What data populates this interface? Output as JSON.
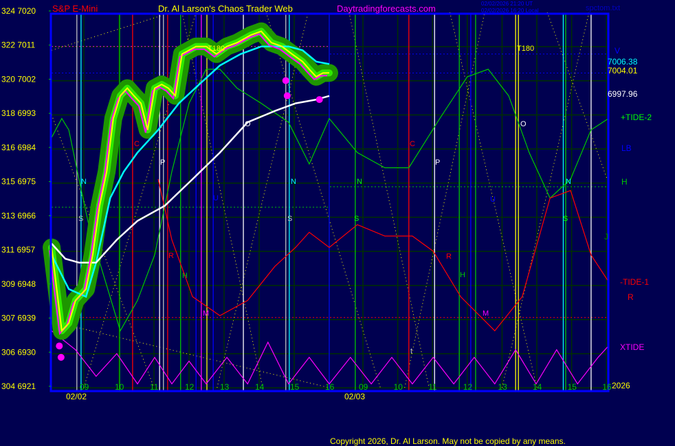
{
  "header": {
    "instrument": "S&P E-Mini",
    "site_title": "Dr. Al Larson's Chaos Trader Web",
    "site_link": "Daytradingforecasts.com",
    "time_ut": "02/02/2026 21:20 UT",
    "time_local": "02/02/2026 16:20 Local",
    "file_name": "spctom.txt"
  },
  "footer": {
    "copyright": "Copyright 2026, Dr. Al Larson. May not be copied by any means."
  },
  "colors": {
    "background": "#000050",
    "price": "#ffff00",
    "glow": "#1e9600",
    "glow_light": "#33ff00",
    "fast_ma": "#00ffff",
    "slow_ma": "#ffffff",
    "tide2": "#00c800",
    "tide1": "#ff0000",
    "xtide": "#ff00ff",
    "border": "#0000ff",
    "grid": "#003000"
  },
  "chart_data": {
    "type": "line",
    "title": "S&P E-Mini",
    "y_left_labels": [
      {
        "angle": "324",
        "price": "7020"
      },
      {
        "angle": "322",
        "price": "7011"
      },
      {
        "angle": "320",
        "price": "7002"
      },
      {
        "angle": "318",
        "price": "6993"
      },
      {
        "angle": "316",
        "price": "6984"
      },
      {
        "angle": "315",
        "price": "6975"
      },
      {
        "angle": "313",
        "price": "6966"
      },
      {
        "angle": "311",
        "price": "6957"
      },
      {
        "angle": "309",
        "price": "6948"
      },
      {
        "angle": "307",
        "price": "6939"
      },
      {
        "angle": "306",
        "price": "6930"
      },
      {
        "angle": "304",
        "price": "6921"
      }
    ],
    "ylim": [
      6921,
      7020
    ],
    "dates": [
      "02/02",
      "02/03"
    ],
    "hour_ticks": {
      "day1": [
        "09",
        "10",
        "11",
        "12",
        "13",
        "14",
        "15",
        "16"
      ],
      "day2": [
        "09",
        "10",
        "11",
        "12",
        "13",
        "14",
        "15",
        "16"
      ]
    },
    "grid": true,
    "right_labels": {
      "v": "V",
      "fast_ma_value": "7006.38",
      "price_value": "7004.01",
      "slow_ma_value": "6997.96",
      "tide2": "+TIDE-2",
      "lb": "LB",
      "h": "H",
      "j": "J",
      "tide1": "-TIDE-1",
      "r": "R",
      "xtide": "XTIDE",
      "year": "2026"
    },
    "annotations": [
      "N",
      "S",
      "C",
      "P",
      "O",
      "U",
      "R",
      "H",
      "M",
      "T180",
      "N",
      "S",
      "N",
      "S",
      "C",
      "P",
      "O",
      "U",
      "R",
      "H",
      "M",
      "T180",
      "N",
      "S",
      "t"
    ],
    "series": {
      "price": [
        [
          1,
          8.08,
          6958
        ],
        [
          1,
          8.37,
          6936
        ],
        [
          1,
          8.57,
          6938
        ],
        [
          1,
          8.76,
          6944
        ],
        [
          1,
          9.06,
          6947
        ],
        [
          1,
          9.25,
          6956
        ],
        [
          1,
          9.45,
          6969
        ],
        [
          1,
          9.65,
          6978
        ],
        [
          1,
          9.84,
          6992
        ],
        [
          1,
          10.04,
          6998
        ],
        [
          1,
          10.24,
          7000
        ],
        [
          1,
          10.43,
          6998
        ],
        [
          1,
          10.63,
          6996
        ],
        [
          1,
          10.82,
          6989
        ],
        [
          1,
          11.02,
          7000
        ],
        [
          1,
          11.22,
          7001
        ],
        [
          1,
          11.41,
          7000
        ],
        [
          1,
          11.61,
          6998
        ],
        [
          1,
          11.8,
          7009
        ],
        [
          1,
          12.0,
          7010
        ],
        [
          1,
          12.2,
          7011
        ],
        [
          1,
          12.49,
          7011
        ],
        [
          1,
          12.78,
          7009
        ],
        [
          1,
          13.08,
          7011
        ],
        [
          1,
          13.37,
          7012
        ],
        [
          1,
          13.76,
          7014
        ],
        [
          1,
          14.06,
          7015
        ],
        [
          1,
          14.35,
          7012
        ],
        [
          1,
          14.65,
          7011
        ],
        [
          1,
          14.94,
          7009
        ],
        [
          1,
          15.24,
          7007
        ],
        [
          1,
          15.43,
          7005
        ],
        [
          1,
          15.63,
          7003
        ],
        [
          1,
          15.82,
          7004
        ],
        [
          1,
          16.0,
          7004.01
        ]
      ],
      "fast_ma": [
        [
          1,
          8.08,
          6956
        ],
        [
          1,
          8.57,
          6947
        ],
        [
          1,
          9.06,
          6945
        ],
        [
          1,
          9.35,
          6954
        ],
        [
          1,
          9.75,
          6971
        ],
        [
          1,
          10.14,
          6978
        ],
        [
          1,
          10.53,
          6983
        ],
        [
          1,
          11.12,
          6989
        ],
        [
          1,
          11.71,
          6996
        ],
        [
          1,
          12.29,
          7001
        ],
        [
          1,
          12.88,
          7006
        ],
        [
          1,
          13.47,
          7009
        ],
        [
          1,
          14.06,
          7011
        ],
        [
          1,
          14.45,
          7011
        ],
        [
          1,
          14.84,
          7011
        ],
        [
          1,
          15.24,
          7010
        ],
        [
          1,
          15.63,
          7007
        ],
        [
          1,
          16.0,
          7006.38
        ]
      ],
      "slow_ma": [
        [
          1,
          8.08,
          6959
        ],
        [
          1,
          8.47,
          6955
        ],
        [
          1,
          8.86,
          6954
        ],
        [
          1,
          9.35,
          6954
        ],
        [
          1,
          9.94,
          6960
        ],
        [
          1,
          10.53,
          6965
        ],
        [
          1,
          11.31,
          6969
        ],
        [
          1,
          12.1,
          6976
        ],
        [
          1,
          12.88,
          6983
        ],
        [
          1,
          13.67,
          6991
        ],
        [
          1,
          14.45,
          6994
        ],
        [
          1,
          15.04,
          6996
        ],
        [
          1,
          15.63,
          6997
        ],
        [
          1,
          16.0,
          6997.96
        ]
      ],
      "tide2": [
        [
          1,
          8.08,
          6987
        ],
        [
          1,
          8.37,
          6992
        ],
        [
          1,
          8.57,
          6989
        ],
        [
          1,
          8.86,
          6976
        ],
        [
          1,
          9.16,
          6963
        ],
        [
          1,
          9.55,
          6951
        ],
        [
          1,
          10.04,
          6936
        ],
        [
          1,
          10.53,
          6944
        ],
        [
          1,
          11.02,
          6956
        ],
        [
          1,
          11.51,
          6978
        ],
        [
          1,
          12.0,
          6996
        ],
        [
          1,
          12.49,
          7005
        ],
        [
          1,
          12.88,
          7005
        ],
        [
          1,
          13.37,
          7000
        ],
        [
          1,
          14.06,
          6996
        ],
        [
          1,
          14.84,
          6991
        ],
        [
          1,
          15.43,
          6980
        ],
        [
          1,
          16.0,
          6992
        ],
        [
          2,
          8.84,
          6983
        ],
        [
          2,
          9.63,
          6979
        ],
        [
          2,
          10.32,
          6979
        ],
        [
          2,
          11.21,
          6992
        ],
        [
          2,
          12.0,
          7003
        ],
        [
          2,
          12.6,
          7005
        ],
        [
          2,
          13.19,
          6998
        ],
        [
          2,
          13.78,
          6983
        ],
        [
          2,
          14.38,
          6971
        ],
        [
          2,
          14.97,
          6976
        ],
        [
          2,
          15.56,
          6989
        ],
        [
          2,
          16.06,
          6992
        ]
      ],
      "tide1": [
        [
          1,
          11.12,
          6976
        ],
        [
          1,
          11.51,
          6960
        ],
        [
          1,
          12.1,
          6945
        ],
        [
          1,
          12.88,
          6940
        ],
        [
          1,
          13.67,
          6944
        ],
        [
          1,
          14.45,
          6953
        ],
        [
          1,
          15.04,
          6958
        ],
        [
          1,
          15.43,
          6962
        ],
        [
          1,
          16.0,
          6958
        ],
        [
          2,
          8.84,
          6964
        ],
        [
          2,
          9.63,
          6961
        ],
        [
          2,
          10.42,
          6961
        ],
        [
          2,
          11.02,
          6957
        ],
        [
          2,
          11.81,
          6945
        ],
        [
          2,
          12.79,
          6936
        ],
        [
          2,
          13.58,
          6945
        ],
        [
          2,
          14.38,
          6971
        ],
        [
          2,
          14.97,
          6973
        ],
        [
          2,
          15.56,
          6956
        ],
        [
          2,
          16.06,
          6949
        ]
      ],
      "xtide": [
        [
          1,
          8.08,
          6936
        ],
        [
          1,
          8.76,
          6931
        ],
        [
          1,
          9.35,
          6924
        ],
        [
          1,
          9.94,
          6930
        ],
        [
          1,
          10.53,
          6922
        ],
        [
          1,
          11.02,
          6929
        ],
        [
          1,
          11.51,
          6922
        ],
        [
          1,
          12.0,
          6928
        ],
        [
          1,
          12.49,
          6922
        ],
        [
          1,
          13.08,
          6929
        ],
        [
          1,
          13.67,
          6922
        ],
        [
          1,
          14.25,
          6933
        ],
        [
          1,
          14.84,
          6922
        ],
        [
          1,
          15.43,
          6929
        ],
        [
          1,
          16.0,
          6922
        ],
        [
          2,
          8.64,
          6929
        ],
        [
          2,
          9.24,
          6922
        ],
        [
          2,
          9.83,
          6929
        ],
        [
          2,
          10.42,
          6922
        ],
        [
          2,
          11.02,
          6929
        ],
        [
          2,
          11.61,
          6922
        ],
        [
          2,
          12.2,
          6929
        ],
        [
          2,
          12.79,
          6922
        ],
        [
          2,
          13.39,
          6931
        ],
        [
          2,
          13.98,
          6922
        ],
        [
          2,
          14.57,
          6931
        ],
        [
          2,
          15.17,
          6922
        ],
        [
          2,
          15.76,
          6929
        ],
        [
          2,
          16.06,
          6932
        ]
      ]
    },
    "time_markers": [
      {
        "day": 1,
        "hour": 8.8,
        "color": "#c0c0c0"
      },
      {
        "day": 1,
        "hour": 8.92,
        "color": "#00ffff"
      },
      {
        "day": 1,
        "hour": 10.02,
        "color": "#00c800"
      },
      {
        "day": 1,
        "hour": 10.39,
        "color": "#ff0000"
      },
      {
        "day": 1,
        "hour": 11.16,
        "color": "#ffffff"
      },
      {
        "day": 1,
        "hour": 11.27,
        "color": "#c0c0c0"
      },
      {
        "day": 1,
        "hour": 11.39,
        "color": "#ff0000"
      },
      {
        "day": 1,
        "hour": 11.76,
        "color": "#00c800"
      },
      {
        "day": 1,
        "hour": 12.2,
        "color": "#0000ff"
      },
      {
        "day": 1,
        "hour": 12.35,
        "color": "#ff00ff"
      },
      {
        "day": 1,
        "hour": 12.51,
        "color": "#ffff00"
      },
      {
        "day": 1,
        "hour": 12.69,
        "color": "#0000ff"
      },
      {
        "day": 1,
        "hour": 13.55,
        "color": "#ffffff"
      },
      {
        "day": 1,
        "hour": 14.76,
        "color": "#c0c0c0"
      },
      {
        "day": 1,
        "hour": 14.86,
        "color": "#00ffff"
      },
      {
        "day": 1,
        "hour": 16.0,
        "color": "#0000ff"
      },
      {
        "day": 2,
        "hour": 8.78,
        "color": "#00c800"
      },
      {
        "day": 2,
        "hour": 10.32,
        "color": "#ff0000"
      },
      {
        "day": 2,
        "hour": 11.06,
        "color": "#ffffff"
      },
      {
        "day": 2,
        "hour": 11.77,
        "color": "#00c800"
      },
      {
        "day": 2,
        "hour": 12.1,
        "color": "#0000ff"
      },
      {
        "day": 2,
        "hour": 12.24,
        "color": "#00c800"
      },
      {
        "day": 2,
        "hour": 13.39,
        "color": "#ffff00"
      },
      {
        "day": 2,
        "hour": 13.47,
        "color": "#ffff00"
      },
      {
        "day": 2,
        "hour": 14.76,
        "color": "#00ffff"
      },
      {
        "day": 2,
        "hour": 14.83,
        "color": "#00c800"
      },
      {
        "day": 2,
        "hour": 15.56,
        "color": "#ffffff"
      }
    ],
    "levels": [
      {
        "price": 7011,
        "color": "#ff00ff",
        "from": [
          1,
          8.08
        ],
        "to": [
          1,
          16.0
        ]
      },
      {
        "price": 7004,
        "color": "#0000ff",
        "from": [
          1,
          8.08
        ],
        "to": [
          2,
          16.06
        ]
      },
      {
        "price": 7009,
        "color": "#0000ff",
        "from": [
          2,
          8.05
        ],
        "to": [
          2,
          16.06
        ]
      },
      {
        "price": 6968.6,
        "color": "#00c800",
        "from": [
          1,
          8.08
        ],
        "to": [
          1,
          16.0
        ]
      },
      {
        "price": 6974,
        "color": "#00c800",
        "from": [
          2,
          8.05
        ],
        "to": [
          2,
          16.06
        ]
      },
      {
        "price": 6939.5,
        "color": "#ff0000",
        "from": [
          1,
          8.08
        ],
        "to": [
          2,
          16.06
        ]
      }
    ],
    "fan_lines": [
      [
        [
          1,
          8.08,
          7010
        ],
        [
          1,
          11.51,
          7020
        ]
      ],
      [
        [
          1,
          8.3,
          6938
        ],
        [
          1,
          16.0,
          6921
        ]
      ],
      [
        [
          1,
          8.08,
          6993
        ],
        [
          1,
          11.0,
          6921
        ]
      ],
      [
        [
          1,
          9.0,
          6921
        ],
        [
          1,
          12.2,
          7020
        ]
      ],
      [
        [
          1,
          11.8,
          7020
        ],
        [
          1,
          14.1,
          6921
        ]
      ],
      [
        [
          1,
          12.8,
          6921
        ],
        [
          1,
          15.4,
          7020
        ]
      ],
      [
        [
          1,
          14.2,
          7020
        ],
        [
          2,
          9.5,
          6921
        ]
      ],
      [
        [
          2,
          8.6,
          7020
        ],
        [
          2,
          10.9,
          6921
        ]
      ],
      [
        [
          2,
          10.2,
          6921
        ],
        [
          2,
          12.5,
          7020
        ]
      ],
      [
        [
          2,
          11.5,
          7020
        ],
        [
          2,
          14.0,
          6921
        ]
      ],
      [
        [
          2,
          13.0,
          6921
        ],
        [
          2,
          15.5,
          7020
        ]
      ],
      [
        [
          2,
          14.3,
          7020
        ],
        [
          2,
          16.06,
          6975
        ]
      ]
    ],
    "markers": [
      [
        1,
        8.3,
        6932
      ],
      [
        1,
        8.35,
        6929
      ],
      [
        1,
        14.76,
        7002
      ],
      [
        1,
        14.8,
        6998
      ],
      [
        1,
        15.72,
        6997
      ]
    ]
  }
}
